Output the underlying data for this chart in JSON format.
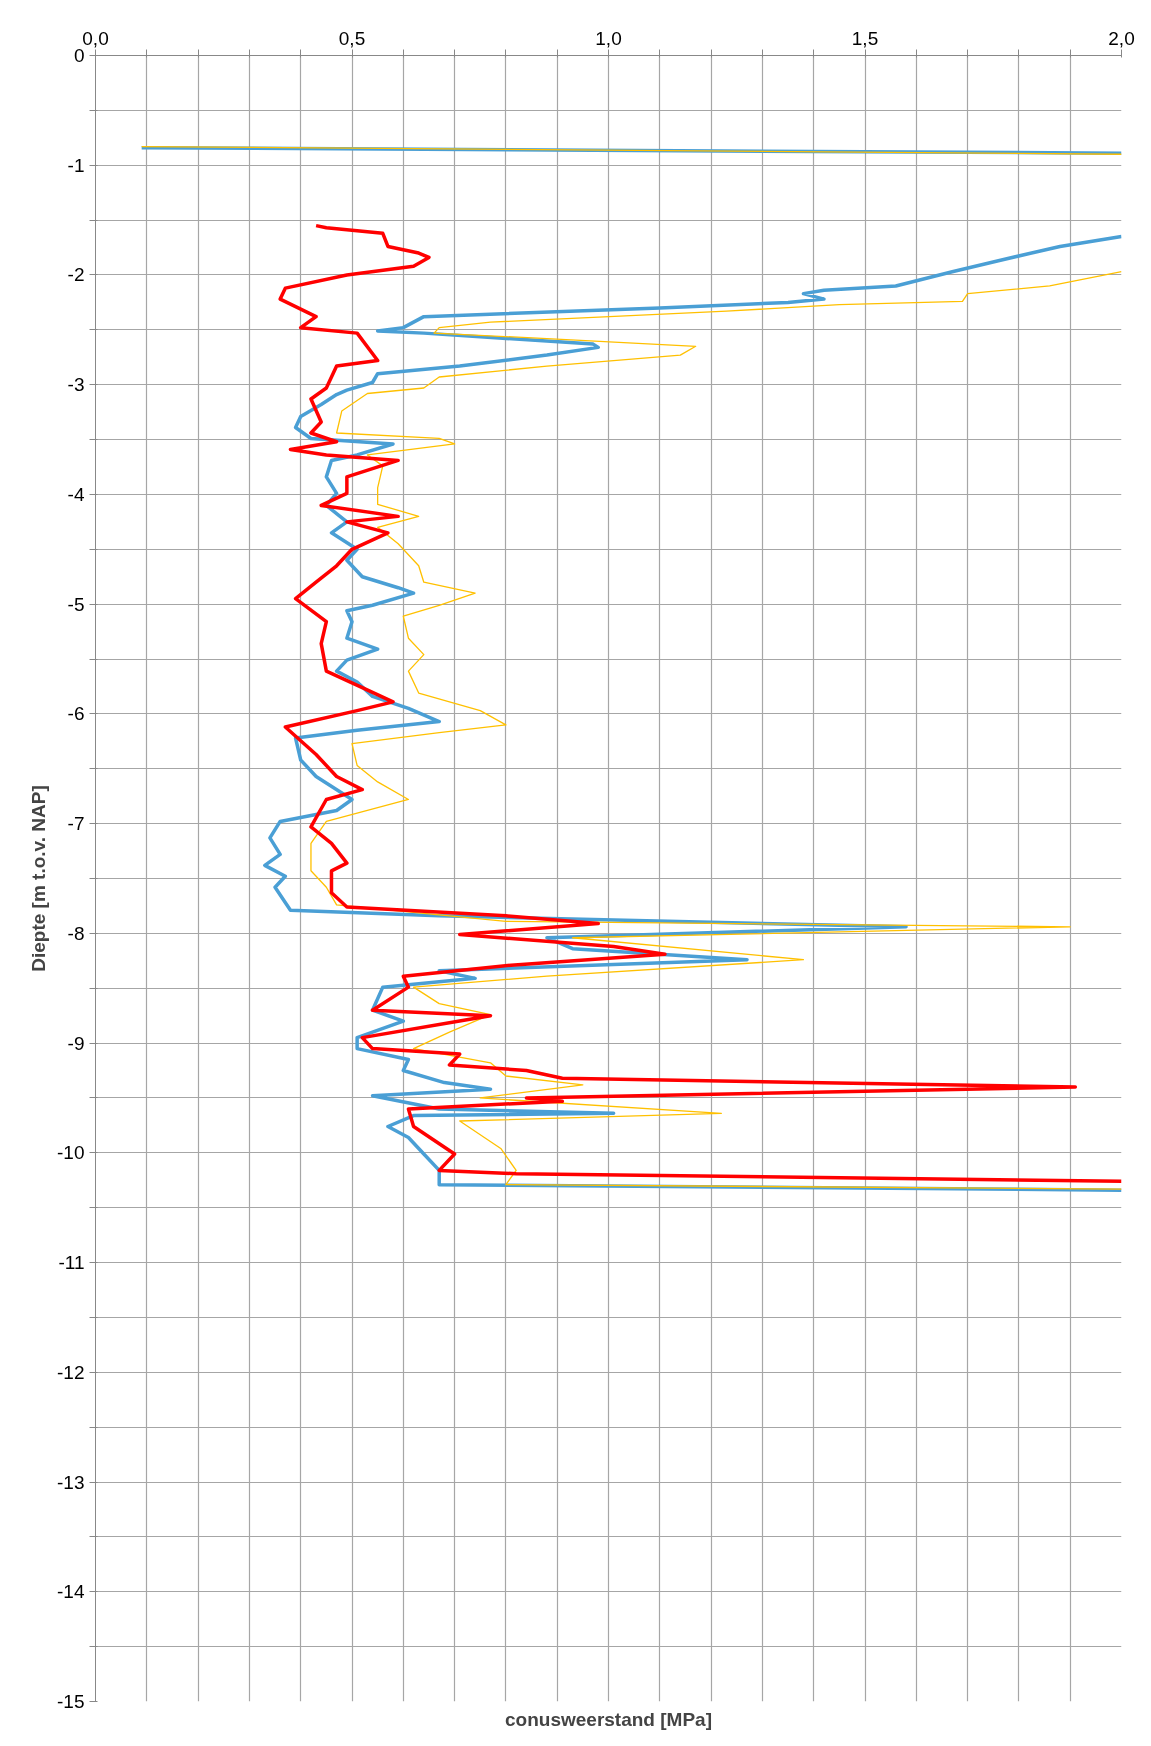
{
  "chart_data": {
    "type": "line",
    "xlabel": "conusweerstand [MPa]",
    "ylabel": "Diepte [m t.o.v. NAP]",
    "xlim": [
      0,
      2
    ],
    "ylim": [
      -15,
      0
    ],
    "xticks": [
      {
        "value": 0,
        "label": "0,0"
      },
      {
        "value": 0.1,
        "label": null
      },
      {
        "value": 0.2,
        "label": null
      },
      {
        "value": 0.3,
        "label": null
      },
      {
        "value": 0.4,
        "label": null
      },
      {
        "value": 0.5,
        "label": "0,5"
      },
      {
        "value": 0.6,
        "label": null
      },
      {
        "value": 0.7,
        "label": null
      },
      {
        "value": 0.8,
        "label": null
      },
      {
        "value": 0.9,
        "label": null
      },
      {
        "value": 1.0,
        "label": "1,0"
      },
      {
        "value": 1.1,
        "label": null
      },
      {
        "value": 1.2,
        "label": null
      },
      {
        "value": 1.3,
        "label": null
      },
      {
        "value": 1.4,
        "label": null
      },
      {
        "value": 1.5,
        "label": "1,5"
      },
      {
        "value": 1.6,
        "label": null
      },
      {
        "value": 1.7,
        "label": null
      },
      {
        "value": 1.8,
        "label": null
      },
      {
        "value": 1.9,
        "label": null
      },
      {
        "value": 2.0,
        "label": "2,0"
      }
    ],
    "yticks": [
      0,
      {
        "value": -0.5,
        "label": null
      },
      -1,
      {
        "value": -1.5,
        "label": null
      },
      -2,
      {
        "value": -2.5,
        "label": null
      },
      -3,
      {
        "value": -3.5,
        "label": null
      },
      -4,
      {
        "value": -4.5,
        "label": null
      },
      -5,
      {
        "value": -5.5,
        "label": null
      },
      -6,
      {
        "value": -6.5,
        "label": null
      },
      -7,
      {
        "value": -7.5,
        "label": null
      },
      -8,
      {
        "value": -8.5,
        "label": null
      },
      -9,
      {
        "value": -9.5,
        "label": null
      },
      -10,
      {
        "value": -10.5,
        "label": null
      },
      -11,
      {
        "value": -11.5,
        "label": null
      },
      -12,
      {
        "value": -12.5,
        "label": null
      },
      -13,
      {
        "value": -13.5,
        "label": null
      },
      -14,
      {
        "value": -14.5,
        "label": null
      },
      -15
    ],
    "grid": true,
    "marker": "none",
    "line_style": "solid",
    "series": [
      {
        "color": "#4a9fd5",
        "x": [
          0.09,
          2.0,
          null,
          2.0,
          1.88,
          1.76,
          1.67,
          1.56,
          1.42,
          1.38,
          1.42,
          1.35,
          1.1,
          0.64,
          0.6,
          0.55,
          0.64,
          0.97,
          0.98,
          0.88,
          0.71,
          0.55,
          0.54,
          0.49,
          0.47,
          0.44,
          0.4,
          0.39,
          0.42,
          0.58,
          0.51,
          0.46,
          0.45,
          0.47,
          0.45,
          0.49,
          0.46,
          0.51,
          0.49,
          0.52,
          0.59,
          0.62,
          0.54,
          0.49,
          0.5,
          0.49,
          0.55,
          0.49,
          0.47,
          0.51,
          0.54,
          0.61,
          0.67,
          0.51,
          0.39,
          0.4,
          0.43,
          0.5,
          0.47,
          0.36,
          0.34,
          0.36,
          0.33,
          0.37,
          0.35,
          0.38,
          0.67,
          1.58,
          0.88,
          0.93,
          1.27,
          0.67,
          0.74,
          0.56,
          0.54,
          0.6,
          0.51,
          0.51,
          0.61,
          0.6,
          0.68,
          0.77,
          0.54,
          0.67,
          1.01,
          0.62,
          0.57,
          0.61,
          0.64,
          0.67,
          0.67,
          2.0
        ],
        "values": [
          -0.84,
          -0.89,
          null,
          -1.65,
          -1.74,
          -1.87,
          -1.97,
          -2.1,
          -2.14,
          -2.17,
          -2.22,
          -2.25,
          -2.3,
          -2.38,
          -2.48,
          -2.51,
          -2.53,
          -2.63,
          -2.66,
          -2.73,
          -2.83,
          -2.9,
          -2.98,
          -3.05,
          -3.09,
          -3.18,
          -3.29,
          -3.39,
          -3.49,
          -3.54,
          -3.64,
          -3.69,
          -3.84,
          -3.99,
          -4.1,
          -4.25,
          -4.35,
          -4.5,
          -4.6,
          -4.75,
          -4.85,
          -4.9,
          -5.01,
          -5.06,
          -5.16,
          -5.31,
          -5.41,
          -5.51,
          -5.61,
          -5.71,
          -5.84,
          -5.95,
          -6.07,
          -6.15,
          -6.22,
          -6.42,
          -6.57,
          -6.78,
          -6.88,
          -6.98,
          -7.13,
          -7.28,
          -7.38,
          -7.48,
          -7.58,
          -7.79,
          -7.84,
          -7.94,
          -8.04,
          -8.14,
          -8.24,
          -8.34,
          -8.41,
          -8.49,
          -8.7,
          -8.8,
          -8.95,
          -9.05,
          -9.15,
          -9.25,
          -9.36,
          -9.42,
          -9.48,
          -9.6,
          -9.64,
          -9.66,
          -9.76,
          -9.86,
          -10.01,
          -10.16,
          -10.29,
          -10.34
        ]
      },
      {
        "color": "#ffc000",
        "x": [
          0.09,
          2.0,
          null,
          2.0,
          1.86,
          1.7,
          1.69,
          1.45,
          1.23,
          0.77,
          0.67,
          0.66,
          0.88,
          1.17,
          1.14,
          0.88,
          0.67,
          0.64,
          0.53,
          0.48,
          0.47,
          0.67,
          0.7,
          0.53,
          0.56,
          0.55,
          0.55,
          0.63,
          0.55,
          0.59,
          0.63,
          0.64,
          0.74,
          0.67,
          0.6,
          0.61,
          0.64,
          0.61,
          0.63,
          0.75,
          0.8,
          0.67,
          0.5,
          0.51,
          0.55,
          0.61,
          0.45,
          0.42,
          0.42,
          0.45,
          0.47,
          0.8,
          1.9,
          0.93,
          1.38,
          0.88,
          0.62,
          0.67,
          0.77,
          0.69,
          0.62,
          0.77,
          0.8,
          0.95,
          0.75,
          1.22,
          0.71,
          0.79,
          0.82,
          0.8,
          2.0
        ],
        "values": [
          -0.83,
          -0.9,
          null,
          -1.97,
          -2.1,
          -2.17,
          -2.24,
          -2.27,
          -2.33,
          -2.43,
          -2.48,
          -2.53,
          -2.58,
          -2.65,
          -2.73,
          -2.83,
          -2.93,
          -3.03,
          -3.08,
          -3.24,
          -3.44,
          -3.49,
          -3.54,
          -3.64,
          -3.74,
          -3.94,
          -4.09,
          -4.2,
          -4.3,
          -4.45,
          -4.65,
          -4.8,
          -4.9,
          -5.01,
          -5.11,
          -5.31,
          -5.46,
          -5.61,
          -5.81,
          -5.97,
          -6.1,
          -6.17,
          -6.27,
          -6.47,
          -6.62,
          -6.78,
          -6.98,
          -7.18,
          -7.43,
          -7.58,
          -7.74,
          -7.89,
          -7.94,
          -8.04,
          -8.24,
          -8.39,
          -8.49,
          -8.64,
          -8.74,
          -8.9,
          -9.05,
          -9.18,
          -9.3,
          -9.38,
          -9.5,
          -9.64,
          -9.71,
          -9.96,
          -10.16,
          -10.29,
          -10.33
        ]
      },
      {
        "color": "#ff0000",
        "x": [
          0.43,
          0.45,
          0.56,
          0.57,
          0.63,
          0.65,
          0.62,
          0.49,
          0.37,
          0.36,
          0.43,
          0.4,
          0.51,
          0.55,
          0.47,
          0.45,
          0.42,
          0.44,
          0.42,
          0.47,
          0.38,
          0.45,
          0.59,
          0.49,
          0.49,
          0.44,
          0.59,
          0.49,
          0.57,
          0.5,
          0.47,
          0.43,
          0.39,
          0.45,
          0.44,
          0.45,
          0.52,
          0.58,
          0.51,
          0.37,
          0.43,
          0.47,
          0.52,
          0.45,
          0.42,
          0.46,
          0.49,
          0.46,
          0.46,
          0.49,
          0.8,
          0.98,
          0.71,
          1.01,
          1.11,
          0.81,
          0.6,
          0.61,
          0.54,
          0.77,
          0.52,
          0.54,
          0.71,
          0.69,
          0.84,
          0.91,
          1.91,
          0.84,
          0.91,
          0.61,
          0.62,
          0.7,
          0.67,
          0.82,
          2.0
        ],
        "values": [
          -1.55,
          -1.57,
          -1.62,
          -1.74,
          -1.8,
          -1.84,
          -1.92,
          -2.0,
          -2.12,
          -2.22,
          -2.38,
          -2.48,
          -2.53,
          -2.78,
          -2.83,
          -3.03,
          -3.13,
          -3.34,
          -3.44,
          -3.52,
          -3.59,
          -3.64,
          -3.69,
          -3.84,
          -3.99,
          -4.1,
          -4.2,
          -4.25,
          -4.35,
          -4.5,
          -4.65,
          -4.8,
          -4.95,
          -5.16,
          -5.36,
          -5.61,
          -5.76,
          -5.89,
          -5.97,
          -6.12,
          -6.37,
          -6.57,
          -6.69,
          -6.78,
          -7.03,
          -7.18,
          -7.36,
          -7.43,
          -7.63,
          -7.76,
          -7.84,
          -7.91,
          -8.01,
          -8.12,
          -8.19,
          -8.29,
          -8.39,
          -8.49,
          -8.7,
          -8.75,
          -8.95,
          -9.05,
          -9.1,
          -9.2,
          -9.25,
          -9.32,
          -9.4,
          -9.5,
          -9.53,
          -9.6,
          -9.76,
          -10.01,
          -10.16,
          -10.19,
          -10.26
        ]
      }
    ]
  }
}
